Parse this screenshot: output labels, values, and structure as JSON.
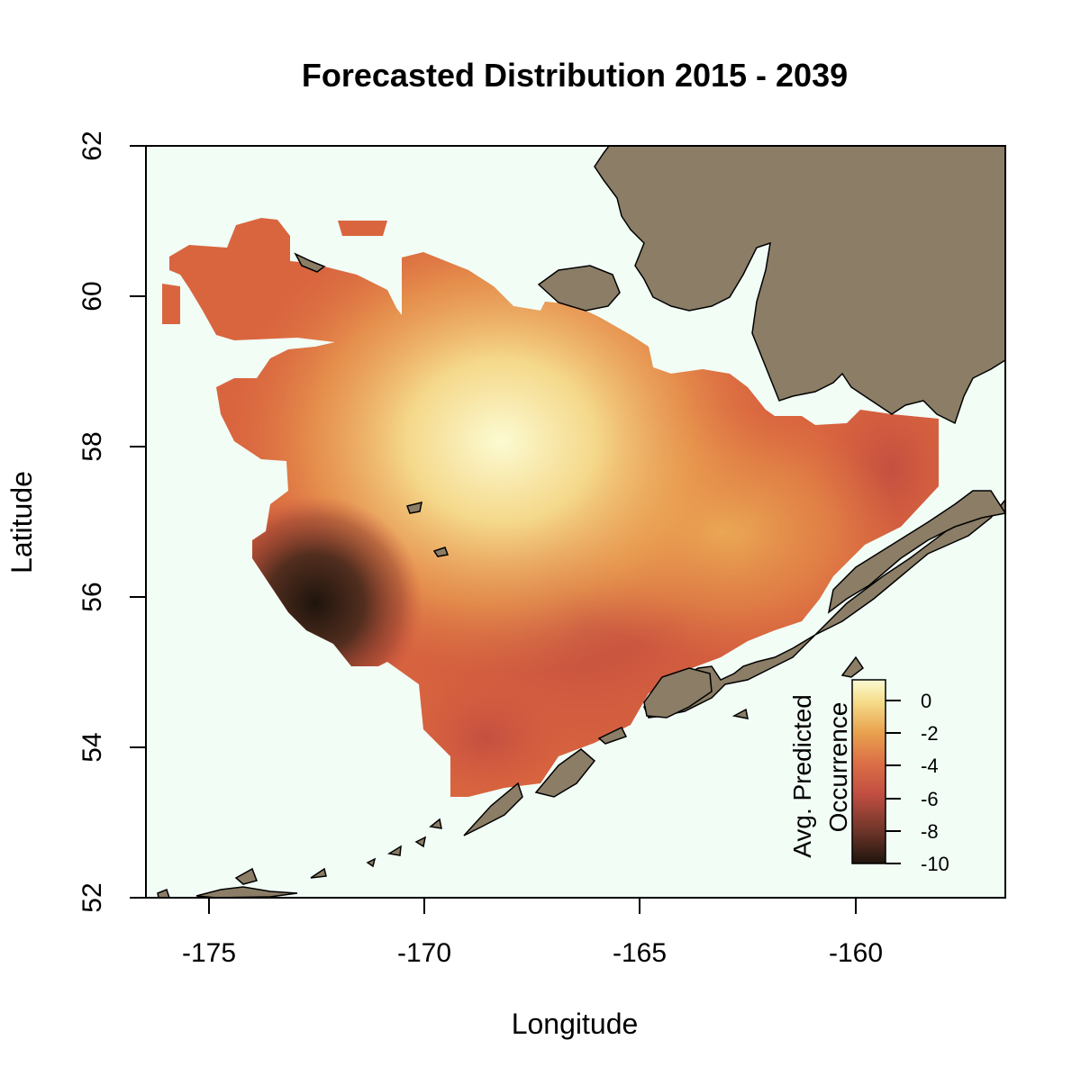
{
  "title": "Forecasted Distribution 2015 - 2039",
  "x_axis": {
    "label": "Longitude",
    "ticks": [
      "-175",
      "-170",
      "-165",
      "-160"
    ]
  },
  "y_axis": {
    "label": "Latitude",
    "ticks": [
      "52",
      "54",
      "56",
      "58",
      "60",
      "62"
    ]
  },
  "legend": {
    "title_line1": "Avg. Predicted",
    "title_line2": "Occurrence",
    "ticks": [
      "0",
      "-2",
      "-4",
      "-6",
      "-8",
      "-10"
    ]
  },
  "colors": {
    "ocean": "#f2fdf6",
    "land": "#8b7d66",
    "scale": [
      "#1e140c",
      "#6b3428",
      "#c24e42",
      "#dc7046",
      "#e9a450",
      "#f5dc8a",
      "#fcfbd2"
    ]
  },
  "chart_data": {
    "type": "heatmap",
    "title": "Forecasted Distribution 2015 - 2039",
    "xlabel": "Longitude",
    "ylabel": "Latitude",
    "xlim": [
      -176.5,
      -156.5
    ],
    "ylim": [
      52,
      62
    ],
    "x_ticks": [
      -175,
      -170,
      -165,
      -160
    ],
    "y_ticks": [
      52,
      54,
      56,
      58,
      60,
      62
    ],
    "value_range": [
      -10,
      0
    ],
    "peak": {
      "lon": -168.2,
      "lat": 58.1,
      "value": 0
    },
    "secondary_peak": {
      "lon": -163.0,
      "lat": 57.0,
      "value": -2
    },
    "minimum": {
      "lon": -172.5,
      "lat": 55.5,
      "value": -10
    },
    "legend_label": "Avg. Predicted Occurrence",
    "legend_position": "bottom-right"
  }
}
